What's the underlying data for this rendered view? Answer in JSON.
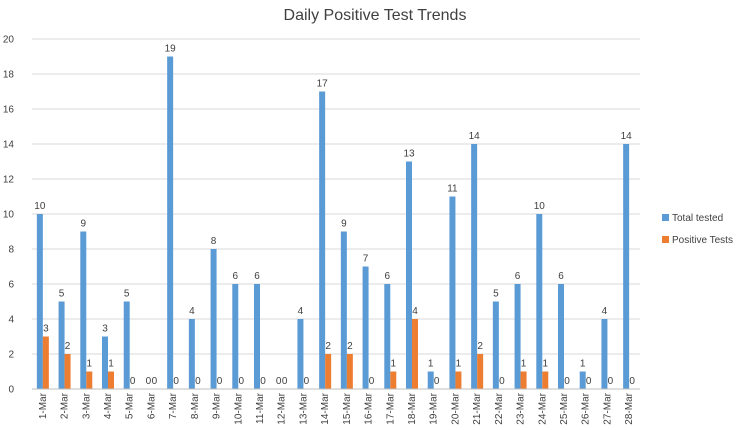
{
  "chart_data": {
    "type": "bar",
    "title": "Daily Positive Test Trends",
    "xlabel": "",
    "ylabel": "",
    "ylim": [
      0,
      20
    ],
    "ytick_step": 2,
    "grid": true,
    "legend_position": "right",
    "categories": [
      "1-Mar",
      "2-Mar",
      "3-Mar",
      "4-Mar",
      "5-Mar",
      "6-Mar",
      "7-Mar",
      "8-Mar",
      "9-Mar",
      "10-Mar",
      "11-Mar",
      "12-Mar",
      "13-Mar",
      "14-Mar",
      "15-Mar",
      "16-Mar",
      "17-Mar",
      "18-Mar",
      "19-Mar",
      "20-Mar",
      "21-Mar",
      "22-Mar",
      "23-Mar",
      "24-Mar",
      "25-Mar",
      "26-Mar",
      "27-Mar",
      "28-Mar"
    ],
    "series": [
      {
        "name": "Total tested",
        "color": "#5b9bd5",
        "values": [
          10,
          5,
          9,
          3,
          5,
          0,
          19,
          4,
          8,
          6,
          6,
          0,
          4,
          17,
          9,
          7,
          6,
          13,
          1,
          11,
          14,
          5,
          6,
          10,
          6,
          1,
          4,
          14
        ]
      },
      {
        "name": "Positive Tests",
        "color": "#ed7d31",
        "values": [
          3,
          2,
          1,
          1,
          0,
          0,
          0,
          0,
          0,
          0,
          0,
          0,
          0,
          2,
          2,
          0,
          1,
          4,
          0,
          1,
          2,
          0,
          1,
          1,
          0,
          0,
          0,
          0
        ]
      }
    ]
  }
}
